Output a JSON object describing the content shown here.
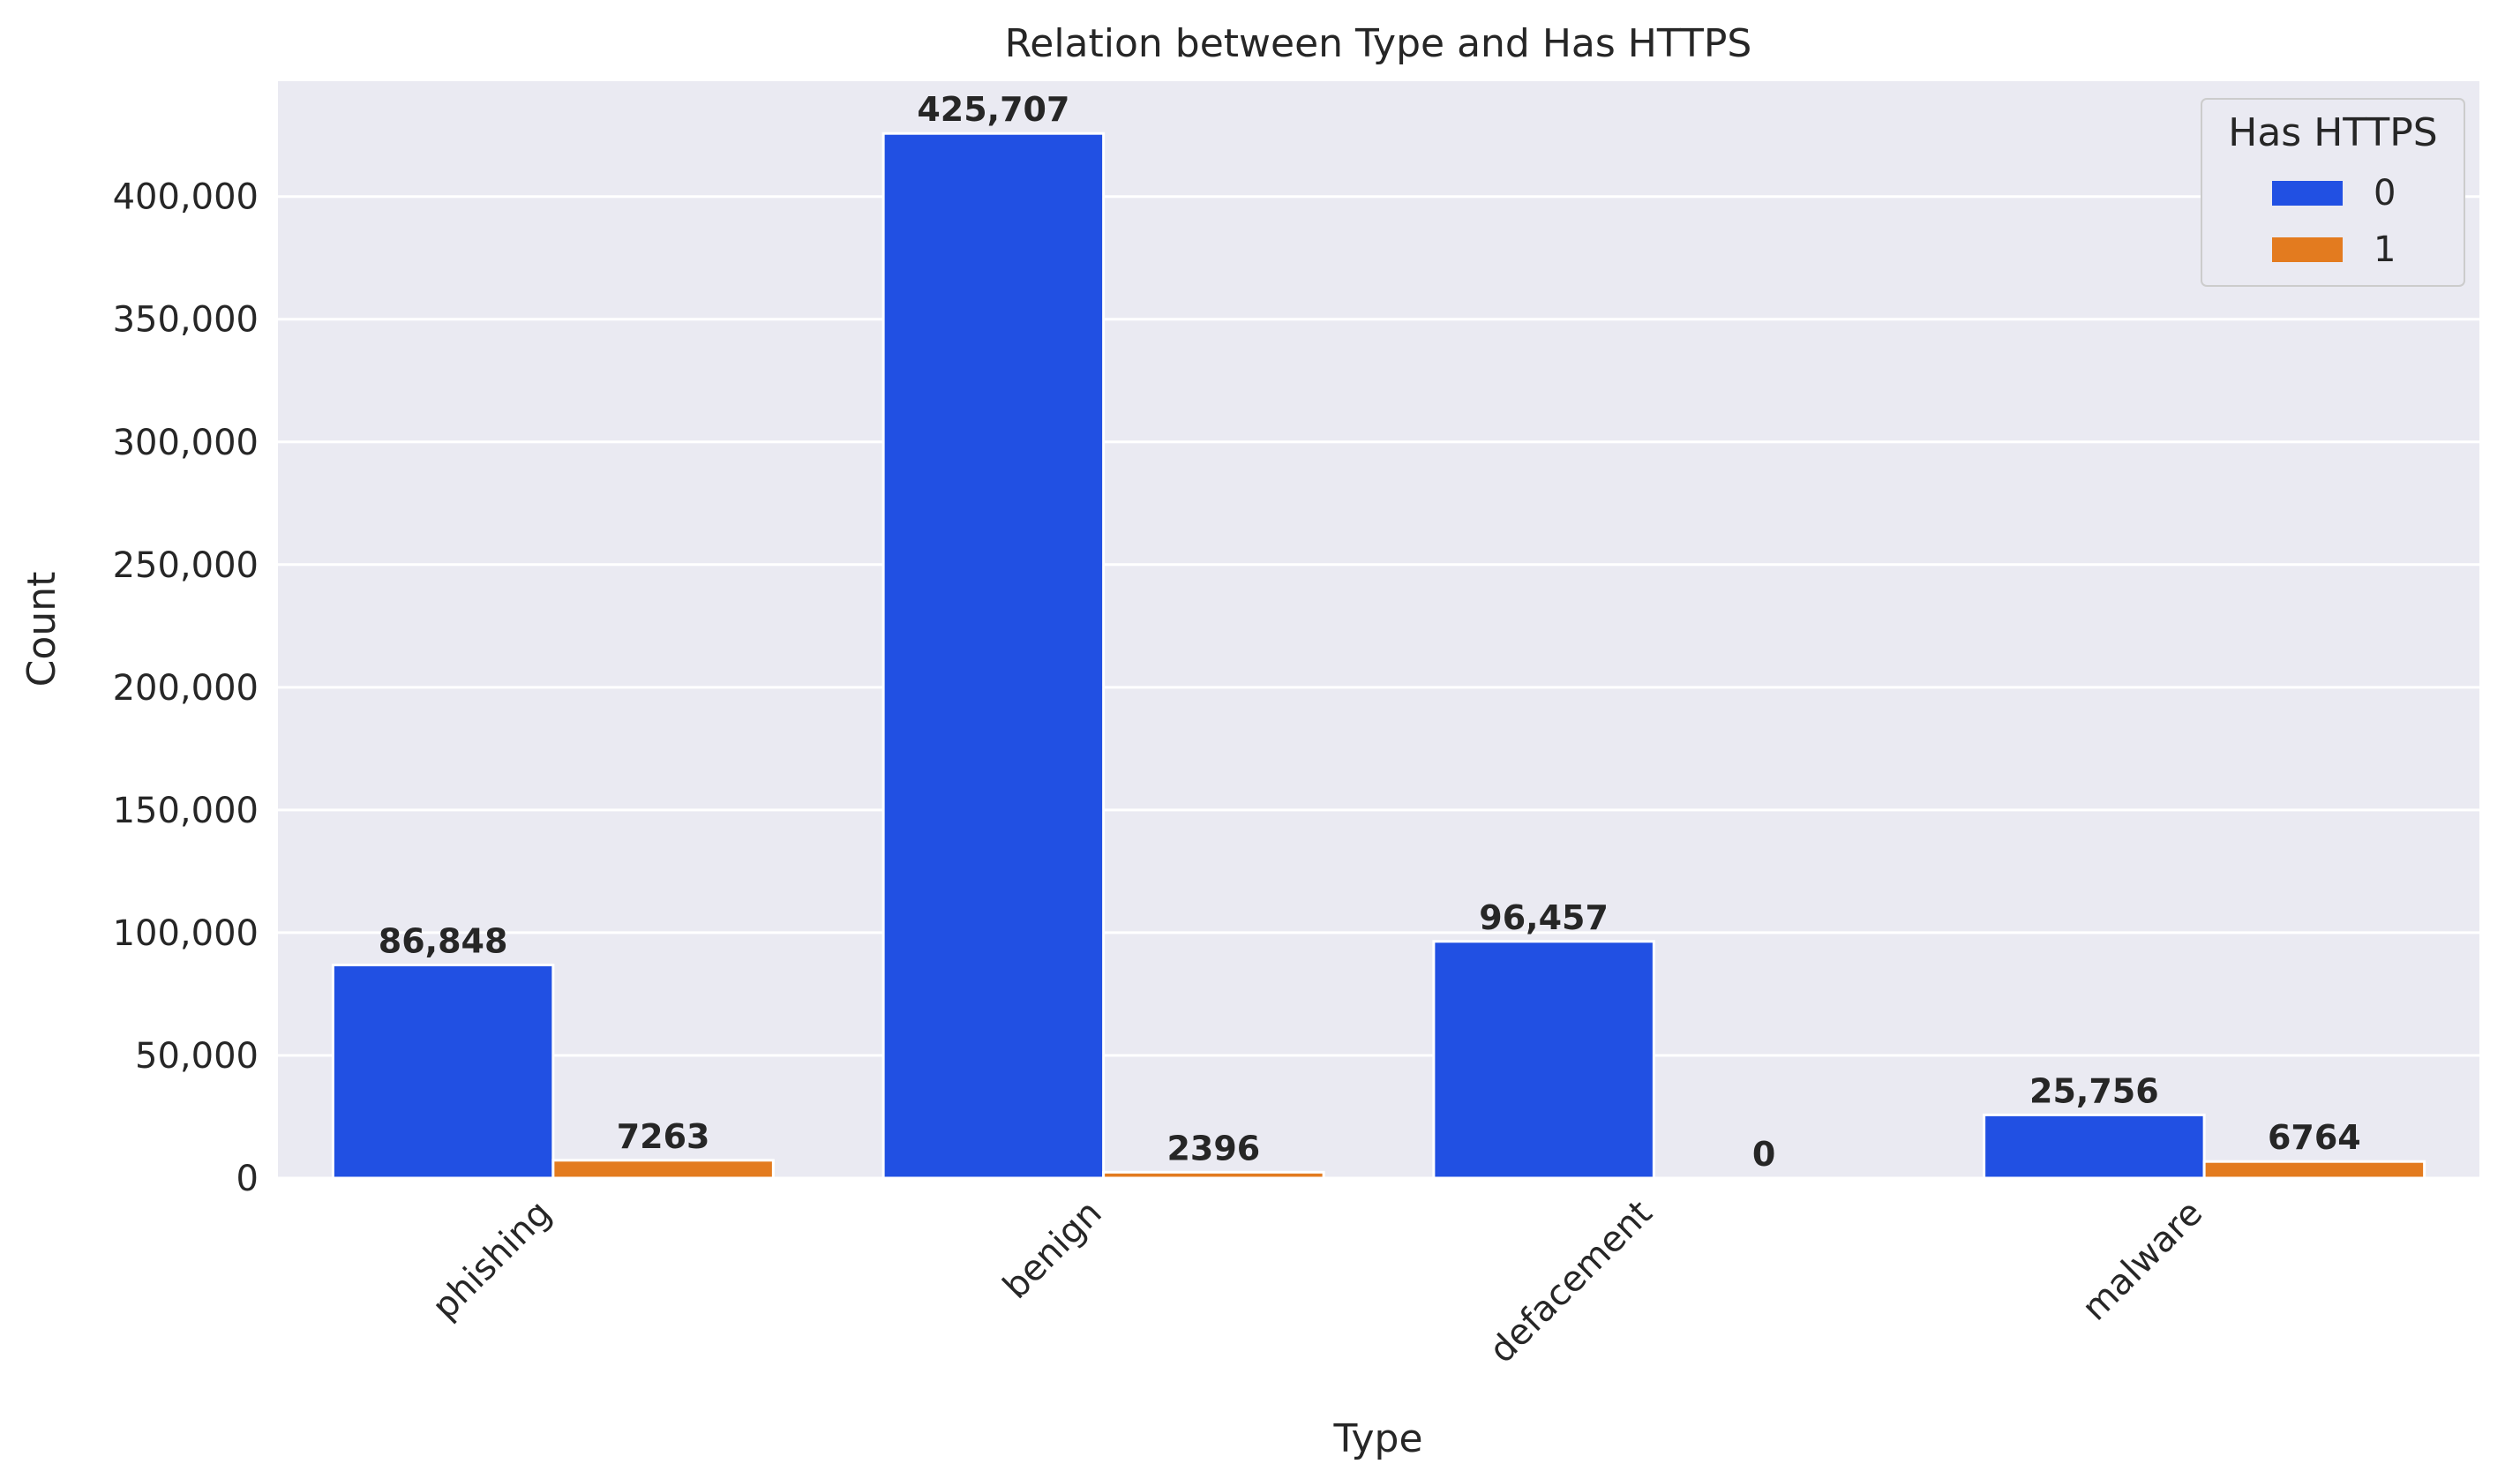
{
  "chart_data": {
    "type": "bar",
    "title": "Relation between Type and Has HTTPS",
    "xlabel": "Type",
    "ylabel": "Count",
    "categories": [
      "phishing",
      "benign",
      "defacement",
      "malware"
    ],
    "series": [
      {
        "name": "0",
        "color": "#2150e3",
        "values": [
          86848,
          425707,
          96457,
          25756
        ],
        "labels": [
          "86,848",
          "425,707",
          "96,457",
          "25,756"
        ]
      },
      {
        "name": "1",
        "color": "#e37b1f",
        "values": [
          7263,
          2396,
          0,
          6764
        ],
        "labels": [
          "7263",
          "2396",
          "0",
          "6764"
        ]
      }
    ],
    "ylim": [
      0,
      447000
    ],
    "yticks": [
      0,
      50000,
      100000,
      150000,
      200000,
      250000,
      300000,
      350000,
      400000
    ],
    "ytick_labels": [
      "0",
      "50,000",
      "100,000",
      "150,000",
      "200,000",
      "250,000",
      "300,000",
      "350,000",
      "400,000"
    ],
    "grid": true,
    "background_color": "#eaeaf2",
    "legend": {
      "title": "Has HTTPS",
      "placement": "top-right"
    }
  }
}
